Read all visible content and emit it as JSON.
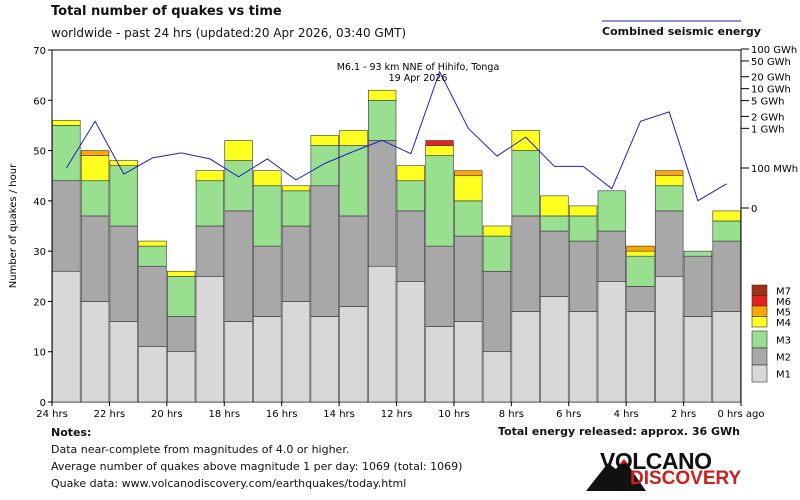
{
  "title": "Total number of quakes vs time",
  "subtitle": "worldwide - past 24 hrs (updated:20 Apr 2026, 03:40 GMT)",
  "energy_legend_label": "Combined seismic energy",
  "total_energy": "Total energy released: approx. 36 GWh",
  "notes": {
    "heading": "Notes:",
    "line1": "Data near-complete from magnitudes of 4.0 or higher.",
    "line2": "Average number of quakes above magnitude 1 per day: 1069 (total: 1069)",
    "line3": "Quake data: www.volcanodiscovery.com/earthquakes/today.html"
  },
  "logo": {
    "line1": "VOLCANO",
    "line2": "DISCOVERY"
  },
  "colors": {
    "M1": "#d8d8d8",
    "M2": "#a8a8a8",
    "M3": "#98e090",
    "M4": "#ffff20",
    "M5": "#ffa500",
    "M6": "#e82020",
    "M7": "#a03010",
    "energy_line": "#2020c0"
  },
  "chart_data": {
    "type": "bar",
    "stacked": true,
    "ylabel": "Number of quakes / hour",
    "ylim": [
      0,
      70
    ],
    "yticks": [
      0,
      10,
      20,
      30,
      40,
      50,
      60,
      70
    ],
    "x_tick_labels": [
      "24 hrs",
      "22 hrs",
      "20 hrs",
      "18 hrs",
      "16 hrs",
      "14 hrs",
      "12 hrs",
      "10 hrs",
      "8 hrs",
      "6 hrs",
      "4 hrs",
      "2 hrs",
      "0 hrs ago"
    ],
    "legend": [
      "M7",
      "M6",
      "M5",
      "M4",
      "M3",
      "M2",
      "M1"
    ],
    "annotation": {
      "line1": "M6.1 - 93 km NNE of Hihifo, Tonga",
      "line2": "19 Apr 2026",
      "bar_index": 13
    },
    "series": [
      {
        "name": "M1",
        "values": [
          26,
          20,
          16,
          11,
          10,
          25,
          16,
          17,
          20,
          17,
          19,
          27,
          24,
          15,
          16,
          10,
          18,
          21,
          18,
          24,
          18,
          25,
          17,
          18
        ]
      },
      {
        "name": "M2",
        "values": [
          18,
          17,
          19,
          16,
          7,
          10,
          22,
          14,
          15,
          26,
          18,
          25,
          14,
          16,
          17,
          16,
          19,
          13,
          14,
          10,
          5,
          13,
          12,
          14
        ]
      },
      {
        "name": "M3",
        "values": [
          11,
          7,
          12,
          4,
          8,
          9,
          10,
          12,
          7,
          8,
          14,
          8,
          6,
          18,
          7,
          7,
          13,
          3,
          5,
          8,
          6,
          5,
          1,
          4
        ]
      },
      {
        "name": "M4",
        "values": [
          1,
          5,
          1,
          1,
          1,
          2,
          4,
          3,
          1,
          2,
          3,
          2,
          3,
          2,
          5,
          2,
          4,
          4,
          2,
          0,
          1,
          2,
          0,
          2
        ]
      },
      {
        "name": "M5",
        "values": [
          0,
          1,
          0,
          0,
          0,
          0,
          0,
          0,
          0,
          0,
          0,
          0,
          0,
          0,
          1,
          0,
          0,
          0,
          0,
          0,
          1,
          1,
          0,
          0
        ]
      },
      {
        "name": "M6",
        "values": [
          0,
          0,
          0,
          0,
          0,
          0,
          0,
          0,
          0,
          0,
          0,
          0,
          0,
          1,
          0,
          0,
          0,
          0,
          0,
          0,
          0,
          0,
          0,
          0
        ]
      },
      {
        "name": "M7",
        "values": [
          0,
          0,
          0,
          0,
          0,
          0,
          0,
          0,
          0,
          0,
          0,
          0,
          0,
          0,
          0,
          0,
          0,
          0,
          0,
          0,
          0,
          0,
          0,
          0
        ]
      }
    ],
    "energy_axis": {
      "labels": [
        "100 GWh",
        "50 GWh",
        "20 GWh",
        "10 GWh",
        "5 GWh",
        "2 GWh",
        "1 GWh",
        "100 MWh",
        "0"
      ],
      "values_mwh": [
        100000,
        50000,
        20000,
        10000,
        5000,
        2000,
        1000,
        100,
        0
      ]
    },
    "energy_series": {
      "name": "Combined seismic energy",
      "x_hours_ago": [
        23.5,
        22.5,
        21.5,
        20.5,
        19.5,
        18.5,
        17.5,
        16.5,
        15.5,
        14.5,
        13.5,
        12.5,
        11.5,
        10.5,
        9.5,
        8.5,
        7.5,
        6.5,
        5.5,
        4.5,
        3.5,
        2.5,
        1.5,
        0.5
      ],
      "values_mwh": [
        100,
        1500,
        70,
        180,
        240,
        170,
        60,
        170,
        50,
        130,
        260,
        500,
        230,
        27000,
        1000,
        200,
        600,
        110,
        110,
        30,
        1500,
        2600,
        15,
        40
      ]
    }
  }
}
